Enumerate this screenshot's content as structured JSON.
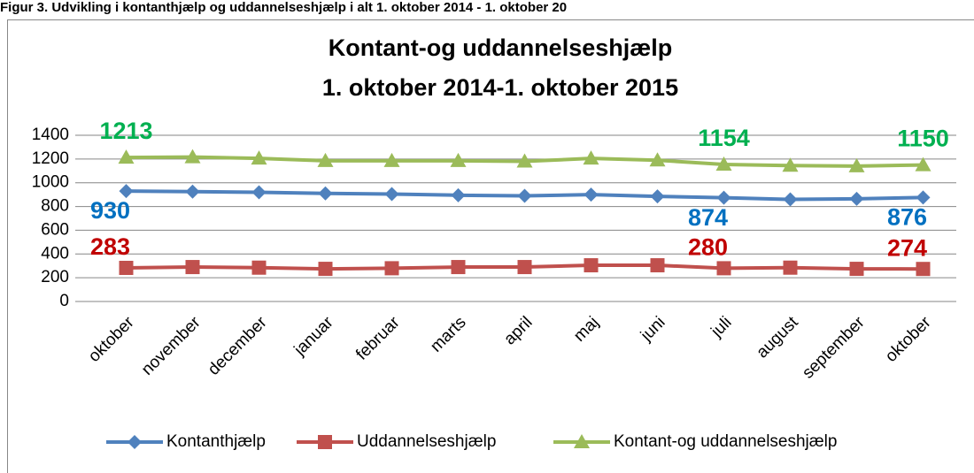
{
  "caption": "Figur 3. Udvikling i kontanthjælp og uddannelseshjælp i alt 1. oktober 2014 - 1. oktober 20",
  "chart_data": {
    "type": "line",
    "title": [
      "Kontant-og uddannelseshjælp",
      "1. oktober 2014-1. oktober 2015"
    ],
    "categories": [
      "oktober",
      "november",
      "december",
      "januar",
      "februar",
      "marts",
      "april",
      "maj",
      "juni",
      "juli",
      "august",
      "september",
      "oktober"
    ],
    "series": [
      {
        "name": "Kontanthjælp",
        "color": "#4f81bd",
        "label_color": "#0070c0",
        "marker": "diamond",
        "values": [
          930,
          925,
          920,
          910,
          905,
          895,
          890,
          900,
          885,
          874,
          860,
          865,
          876
        ]
      },
      {
        "name": "Uddannelseshjælp",
        "color": "#c0504d",
        "label_color": "#c00000",
        "marker": "square",
        "values": [
          283,
          290,
          285,
          275,
          280,
          290,
          290,
          305,
          305,
          280,
          285,
          275,
          274
        ]
      },
      {
        "name": "Kontant-og uddannelseshjælp",
        "color": "#9bbb59",
        "label_color": "#00b050",
        "marker": "triangle",
        "values": [
          1213,
          1217,
          1205,
          1185,
          1185,
          1185,
          1180,
          1205,
          1190,
          1154,
          1145,
          1140,
          1150
        ]
      }
    ],
    "data_label_indices": [
      0,
      9,
      12
    ],
    "ylim": [
      0,
      1400
    ],
    "yticks": [
      0,
      200,
      400,
      600,
      800,
      1000,
      1200,
      1400
    ],
    "grid": true,
    "legend": "bottom"
  }
}
